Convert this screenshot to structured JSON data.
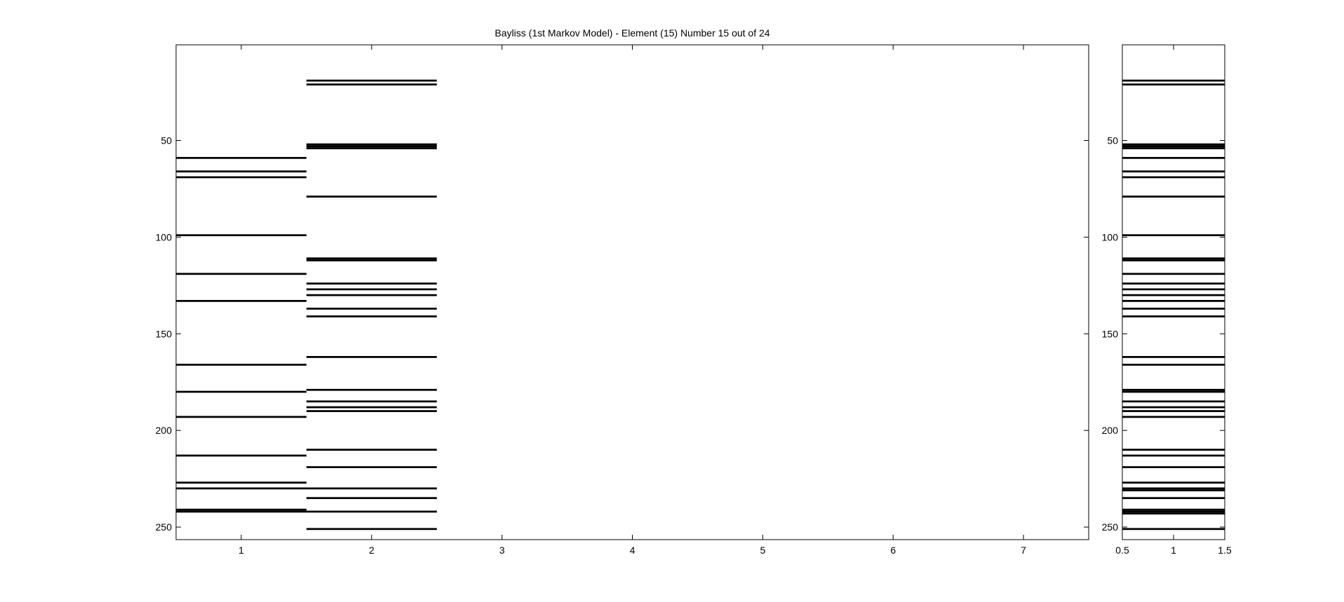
{
  "chart_data": [
    {
      "type": "heatmap",
      "title": "Bayliss (1st Markov Model) - Element (15) Number 15 out of 24",
      "xlabel": "",
      "ylabel": "",
      "xlim": [
        0.5,
        7.5
      ],
      "ylim": [
        1,
        256
      ],
      "y_reversed": true,
      "colors": {
        "mark": "#000000",
        "background": "#ffffff"
      },
      "x_ticks": [
        1,
        2,
        3,
        4,
        5,
        6,
        7
      ],
      "y_ticks": [
        50,
        100,
        150,
        200,
        250
      ],
      "columns": [
        {
          "x": 1,
          "rows": [
            59,
            66,
            69,
            99,
            119,
            133,
            166,
            180,
            193,
            213,
            227,
            230,
            241,
            242
          ]
        },
        {
          "x": 2,
          "rows": [
            19,
            21,
            52,
            53,
            54,
            79,
            111,
            112,
            124,
            127,
            130,
            137,
            141,
            162,
            179,
            185,
            188,
            190,
            210,
            219,
            230,
            235,
            242,
            251
          ]
        }
      ]
    },
    {
      "type": "heatmap",
      "title": "",
      "xlabel": "",
      "ylabel": "",
      "xlim": [
        0.5,
        1.5
      ],
      "ylim": [
        1,
        256
      ],
      "y_reversed": true,
      "colors": {
        "mark": "#000000",
        "background": "#ffffff"
      },
      "x_ticks": [
        0.5,
        1,
        1.5
      ],
      "y_ticks": [
        50,
        100,
        150,
        200,
        250
      ],
      "columns": [
        {
          "x": 1,
          "rows": [
            19,
            21,
            52,
            53,
            54,
            59,
            66,
            69,
            79,
            99,
            111,
            112,
            119,
            124,
            127,
            130,
            133,
            137,
            141,
            162,
            166,
            179,
            180,
            185,
            188,
            190,
            193,
            210,
            213,
            219,
            227,
            230,
            231,
            235,
            241,
            242,
            243,
            251
          ]
        }
      ]
    }
  ]
}
